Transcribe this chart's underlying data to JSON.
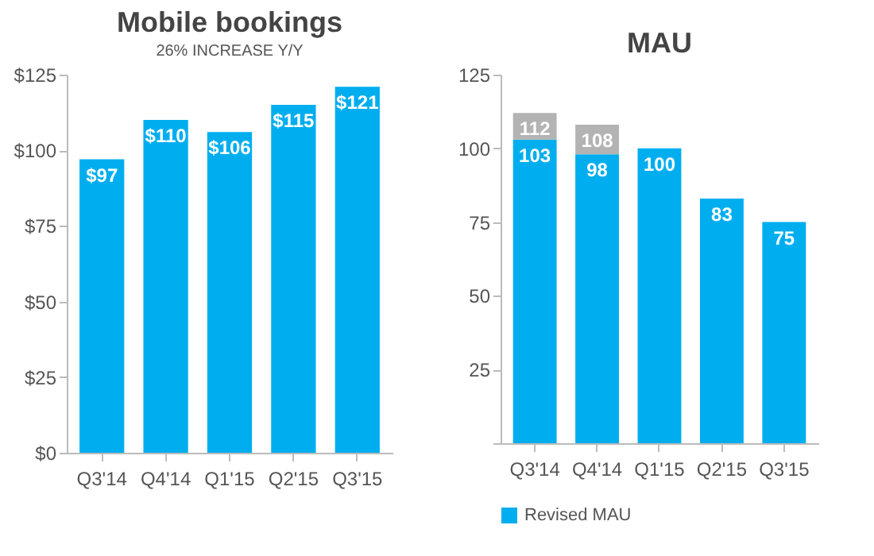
{
  "chart_data": [
    {
      "type": "bar",
      "title": "Mobile bookings",
      "subtitle": "26% INCREASE Y/Y",
      "categories": [
        "Q3'14",
        "Q4'14",
        "Q1'15",
        "Q2'15",
        "Q3'15"
      ],
      "values": [
        97,
        110,
        106,
        115,
        121
      ],
      "color": "#00aeef",
      "value_labels": [
        "$97",
        "$110",
        "$106",
        "$115",
        "$121"
      ],
      "ylim": [
        0,
        125
      ],
      "yticks": [
        {
          "value": 0,
          "label": "$0"
        },
        {
          "value": 25,
          "label": "$25"
        },
        {
          "value": 50,
          "label": "$50"
        },
        {
          "value": 75,
          "label": "$75"
        },
        {
          "value": 100,
          "label": "$100"
        },
        {
          "value": 125,
          "label": "$125"
        }
      ]
    },
    {
      "type": "bar",
      "title": "MAU",
      "categories": [
        "Q3'14",
        "Q4'14",
        "Q1'15",
        "Q2'15",
        "Q3'15"
      ],
      "stacked": true,
      "legend": "bottom",
      "ylim": [
        0,
        125
      ],
      "yticks": [
        {
          "value": 0,
          "label": null
        },
        25,
        50,
        75,
        100,
        125
      ],
      "series": [
        {
          "name": "Revised MAU",
          "color": "#00aeef",
          "values": [
            103,
            98,
            100,
            83,
            75
          ],
          "value_labels": [
            "103",
            "98",
            "100",
            "83",
            "75"
          ]
        },
        {
          "color": "#b3b3b3",
          "values": [
            9,
            10,
            null,
            null,
            null
          ]
        }
      ],
      "totals": [
        "112",
        "108",
        null,
        null,
        null
      ]
    }
  ]
}
